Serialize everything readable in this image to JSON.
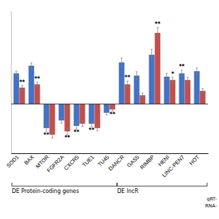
{
  "chart_data": {
    "type": "bar",
    "categories": [
      "SOD1",
      "BAX",
      "MTOR",
      "FGFR2A",
      "CXCR5",
      "TUE1",
      "TU45",
      "DANCR",
      "GAS5",
      "RIMBP",
      "HENI",
      "LINC-PEN7",
      "HOT"
    ],
    "series": [
      {
        "color": "#4472C4",
        "values": [
          2.8,
          3.5,
          -2.2,
          -1.5,
          -2.0,
          -1.8,
          -0.8,
          3.8,
          2.6,
          4.5,
          2.5,
          2.8,
          3.0
        ],
        "errors": [
          0.2,
          0.25,
          0.3,
          0.25,
          0.3,
          0.3,
          0.2,
          0.4,
          0.35,
          0.5,
          0.3,
          0.3,
          0.3
        ],
        "annotations": [
          null,
          null,
          "**",
          null,
          "**",
          "**",
          null,
          null,
          null,
          null,
          null,
          "**",
          null
        ]
      },
      {
        "color": "#C0504D",
        "values": [
          1.5,
          1.8,
          -2.8,
          -2.5,
          -1.8,
          -2.2,
          -0.5,
          1.8,
          0.8,
          6.5,
          2.2,
          2.2,
          1.2
        ],
        "errors": [
          0.2,
          0.2,
          0.3,
          0.3,
          0.25,
          0.25,
          0.15,
          0.3,
          0.2,
          0.5,
          0.25,
          0.25,
          0.2
        ],
        "annotations": [
          "**",
          "**",
          null,
          "**",
          null,
          null,
          "**",
          "**",
          null,
          "**",
          "*",
          null,
          null
        ]
      }
    ],
    "groups": [
      {
        "label": "DE Protein-coding genes",
        "categories": [
          "SOD1",
          "BAX",
          "MTOR",
          "FGFR2A",
          "CXCR5",
          "TUE1",
          "TU45"
        ]
      },
      {
        "label": "DE lncR",
        "categories": [
          "DANCR",
          "GAS5",
          "RIMBP",
          "HENI",
          "LINC-PEN7",
          "HOT"
        ]
      }
    ],
    "annotations": [
      "qRT-",
      "RNA-"
    ],
    "ylim": [
      -4.5,
      8.5
    ],
    "tick_labels": "x",
    "grid": false
  }
}
